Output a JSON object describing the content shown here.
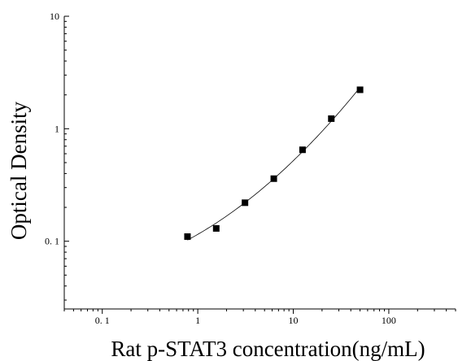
{
  "chart_data": {
    "type": "scatter",
    "xlabel": "Rat p-STAT3 concentration(ng/mL)",
    "ylabel": "Optical Density",
    "x_scale": "log",
    "y_scale": "log",
    "xlim": [
      0.04,
      500
    ],
    "ylim": [
      0.025,
      10
    ],
    "x_ticks": [
      0.1,
      1,
      10,
      100
    ],
    "x_tick_labels": [
      "0. 1",
      "1",
      "10",
      "100"
    ],
    "y_ticks": [
      0.1,
      1,
      10
    ],
    "y_tick_labels": [
      "0. 1",
      "1",
      "10"
    ],
    "grid": false,
    "fit_line": true,
    "series": [
      {
        "points": [
          {
            "x": 0.78,
            "y": 0.11
          },
          {
            "x": 1.56,
            "y": 0.13
          },
          {
            "x": 3.12,
            "y": 0.22
          },
          {
            "x": 6.25,
            "y": 0.36
          },
          {
            "x": 12.5,
            "y": 0.65
          },
          {
            "x": 25,
            "y": 1.23
          },
          {
            "x": 50,
            "y": 2.22
          }
        ]
      }
    ]
  }
}
